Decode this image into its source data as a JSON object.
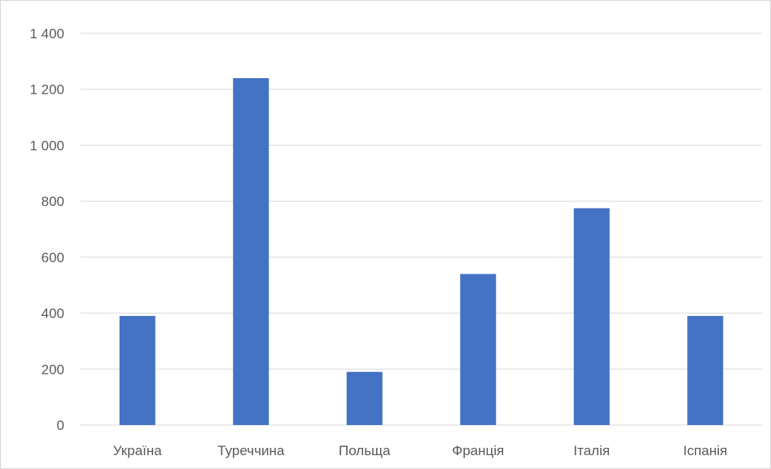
{
  "chart_data": {
    "type": "bar",
    "title": "",
    "xlabel": "",
    "ylabel": "",
    "categories": [
      "Україна",
      "Туреччина",
      "Польща",
      "Франція",
      "Італія",
      "Іспанія"
    ],
    "values": [
      390,
      1240,
      190,
      540,
      775,
      390
    ],
    "ylim": [
      0,
      1400
    ],
    "yticks": [
      0,
      200,
      400,
      600,
      800,
      1000,
      1200,
      1400
    ],
    "ytick_labels": [
      "0",
      "200",
      "400",
      "600",
      "800",
      "1 000",
      "1 200",
      "1 400"
    ],
    "grid": true,
    "legend": "none",
    "bar_color": "#4472C4"
  }
}
